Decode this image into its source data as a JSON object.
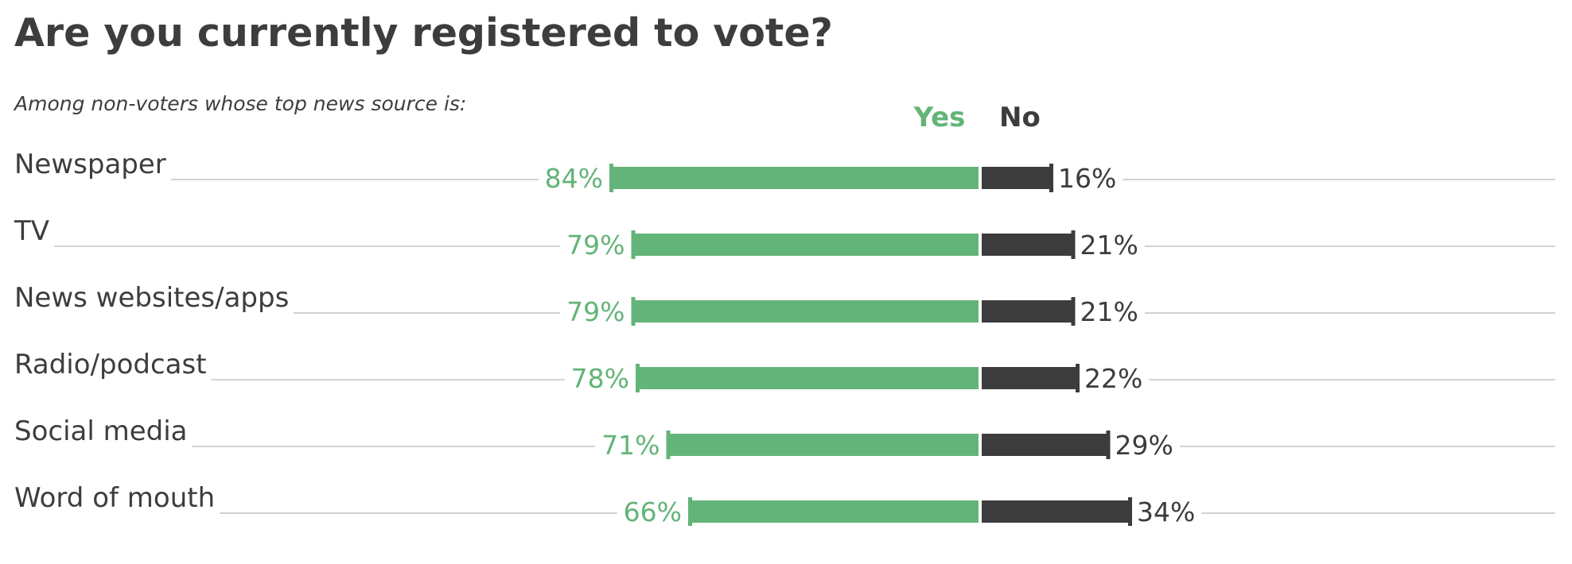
{
  "title": "Are you currently registered to vote?",
  "subtitle": "Among non-voters whose top news source is:",
  "colors": {
    "yes": "#63b478",
    "no": "#3c3c3c",
    "text": "#3d3d3d",
    "leader": "#c2c2c2"
  },
  "chart_data": {
    "type": "bar",
    "stacked": true,
    "orientation": "horizontal",
    "title": "Are you currently registered to vote?",
    "subtitle": "Among non-voters whose top news source is:",
    "categories": [
      "Newspaper",
      "TV",
      "News websites/apps",
      "Radio/podcast",
      "Social media",
      "Word of mouth"
    ],
    "series": [
      {
        "name": "Yes",
        "values": [
          84,
          79,
          79,
          78,
          71,
          66
        ],
        "labels": [
          "84%",
          "79%",
          "79%",
          "78%",
          "71%",
          "66%"
        ]
      },
      {
        "name": "No",
        "values": [
          16,
          21,
          21,
          22,
          29,
          34
        ],
        "labels": [
          "16%",
          "21%",
          "21%",
          "22%",
          "29%",
          "34%"
        ]
      }
    ],
    "unit": "%",
    "legend": "top-center",
    "grid": false
  }
}
